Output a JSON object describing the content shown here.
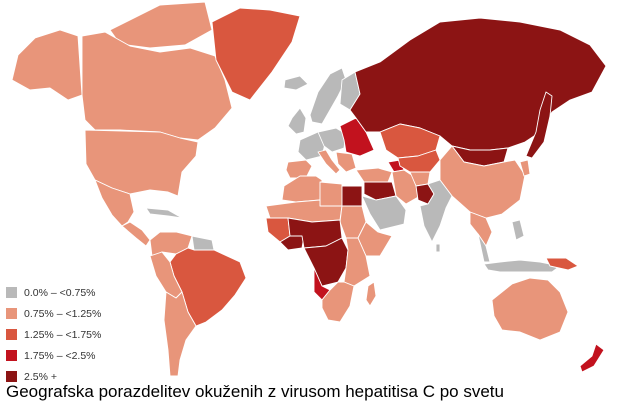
{
  "map": {
    "legend": [
      {
        "label": "0.0% – <0.75%",
        "color": "#b9b9b9"
      },
      {
        "label": "0.75% – <1.25%",
        "color": "#e8957a"
      },
      {
        "label": "1.25% – <1.75%",
        "color": "#d9573f"
      },
      {
        "label": "1.75% – <2.5%",
        "color": "#c2121e"
      },
      {
        "label": "2.5% +",
        "color": "#8c1414"
      }
    ],
    "regions": [
      {
        "id": "alaska",
        "class": 1
      },
      {
        "id": "canada",
        "class": 1
      },
      {
        "id": "canadian-arctic-islands",
        "class": 1
      },
      {
        "id": "usa",
        "class": 1
      },
      {
        "id": "mexico",
        "class": 1
      },
      {
        "id": "central-america",
        "class": 1
      },
      {
        "id": "caribbean",
        "class": 0
      },
      {
        "id": "greenland",
        "class": 2
      },
      {
        "id": "iceland",
        "class": 0
      },
      {
        "id": "colombia-venezuela",
        "class": 1
      },
      {
        "id": "guianas",
        "class": 0
      },
      {
        "id": "brazil",
        "class": 2
      },
      {
        "id": "andes-west",
        "class": 1
      },
      {
        "id": "argentina-chile",
        "class": 1
      },
      {
        "id": "scandinavia",
        "class": 0
      },
      {
        "id": "finland",
        "class": 0
      },
      {
        "id": "uk-ireland",
        "class": 0
      },
      {
        "id": "western-europe",
        "class": 0
      },
      {
        "id": "iberia",
        "class": 1
      },
      {
        "id": "italy",
        "class": 1
      },
      {
        "id": "central-europe",
        "class": 0
      },
      {
        "id": "eastern-europe",
        "class": 3
      },
      {
        "id": "balkans",
        "class": 1
      },
      {
        "id": "turkey",
        "class": 1
      },
      {
        "id": "caucasus",
        "class": 3
      },
      {
        "id": "russia",
        "class": 4
      },
      {
        "id": "kazakhstan",
        "class": 2
      },
      {
        "id": "central-asia",
        "class": 2
      },
      {
        "id": "mongolia",
        "class": 4
      },
      {
        "id": "china",
        "class": 1
      },
      {
        "id": "korea",
        "class": 1
      },
      {
        "id": "japan",
        "class": 4
      },
      {
        "id": "syria-iraq",
        "class": 4
      },
      {
        "id": "iran",
        "class": 1
      },
      {
        "id": "arabia",
        "class": 0
      },
      {
        "id": "pakistan",
        "class": 4
      },
      {
        "id": "afghanistan",
        "class": 1
      },
      {
        "id": "india",
        "class": 0
      },
      {
        "id": "sri-lanka",
        "class": 0
      },
      {
        "id": "southeast-asia",
        "class": 1
      },
      {
        "id": "malay-peninsula",
        "class": 0
      },
      {
        "id": "philippines",
        "class": 0
      },
      {
        "id": "indonesia",
        "class": 0
      },
      {
        "id": "new-guinea",
        "class": 2
      },
      {
        "id": "australia",
        "class": 1
      },
      {
        "id": "new-zealand",
        "class": 3
      },
      {
        "id": "maghreb",
        "class": 1
      },
      {
        "id": "libya",
        "class": 1
      },
      {
        "id": "egypt",
        "class": 4
      },
      {
        "id": "sahel",
        "class": 1
      },
      {
        "id": "west-africa",
        "class": 2
      },
      {
        "id": "west-africa-coast",
        "class": 4
      },
      {
        "id": "nigeria-chad",
        "class": 4
      },
      {
        "id": "sudan",
        "class": 1
      },
      {
        "id": "horn-of-africa",
        "class": 1
      },
      {
        "id": "congo-basin",
        "class": 4
      },
      {
        "id": "east-africa",
        "class": 1
      },
      {
        "id": "angola",
        "class": 3
      },
      {
        "id": "southern-africa",
        "class": 1
      },
      {
        "id": "madagascar",
        "class": 1
      }
    ]
  },
  "caption": "Geografska porazdelitev okuženih z virusom hepatitisa C po svetu"
}
